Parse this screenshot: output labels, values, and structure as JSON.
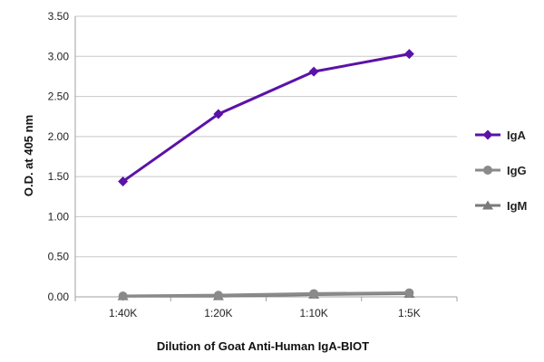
{
  "chart_data": {
    "type": "line",
    "title": "",
    "xlabel": "Dilution of Goat Anti-Human IgA-BIOT",
    "ylabel": "O.D. at 405 nm",
    "categories": [
      "1:40K",
      "1:20K",
      "1:10K",
      "1:5K"
    ],
    "ylim": [
      0,
      3.5
    ],
    "yticks": [
      "0.00",
      "0.50",
      "1.00",
      "1.50",
      "2.00",
      "2.50",
      "3.00",
      "3.50"
    ],
    "grid": true,
    "legend_position": "right",
    "series": [
      {
        "name": "IgA",
        "values": [
          1.44,
          2.28,
          2.81,
          3.03
        ],
        "color": "#5b12a8",
        "marker": "diamond"
      },
      {
        "name": "IgG",
        "values": [
          0.01,
          0.02,
          0.04,
          0.05
        ],
        "color": "#8a8a8a",
        "marker": "circle"
      },
      {
        "name": "IgM",
        "values": [
          0.01,
          0.01,
          0.03,
          0.04
        ],
        "color": "#7a7a7a",
        "marker": "triangle"
      }
    ]
  }
}
